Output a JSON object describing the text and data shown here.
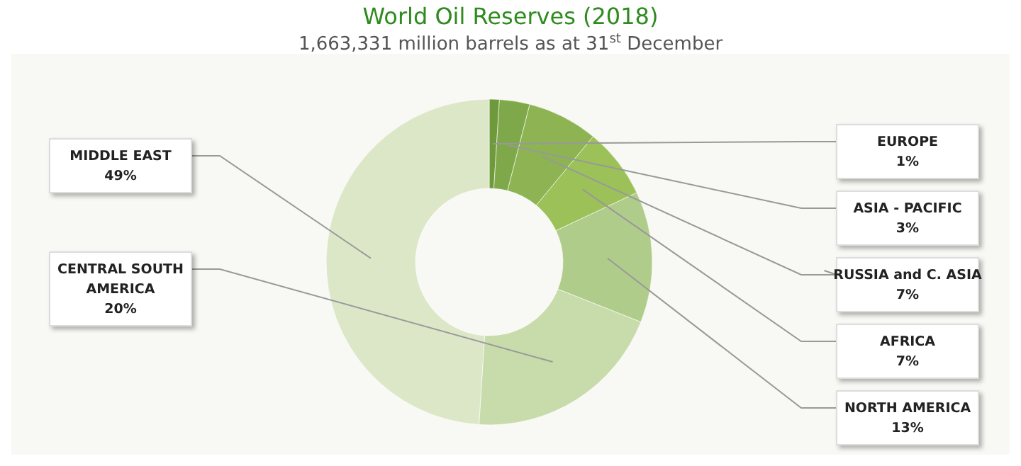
{
  "chart_data": {
    "type": "donut",
    "title": "World Oil Reserves (2018)",
    "subtitle": "1,663,331 million barrels as at 31$^{st}$ December",
    "categories": [
      "EUROPE",
      "ASIA - PACIFIC",
      "RUSSIA and C. ASIA",
      "AFRICA",
      "NORTH AMERICA",
      "CENTRAL SOUTH AMERICA",
      "MIDDLE EAST"
    ],
    "values": [
      1,
      3,
      7,
      7,
      13,
      20,
      49
    ],
    "value_labels": [
      "1%",
      "3%",
      "7%",
      "7%",
      "13%",
      "20%",
      "49%"
    ],
    "colors": [
      "#6e9a3c",
      "#7fa84a",
      "#8db353",
      "#9bc158",
      "#b0cc8a",
      "#c8dbab",
      "#dce7c8"
    ],
    "legend": false
  }
}
